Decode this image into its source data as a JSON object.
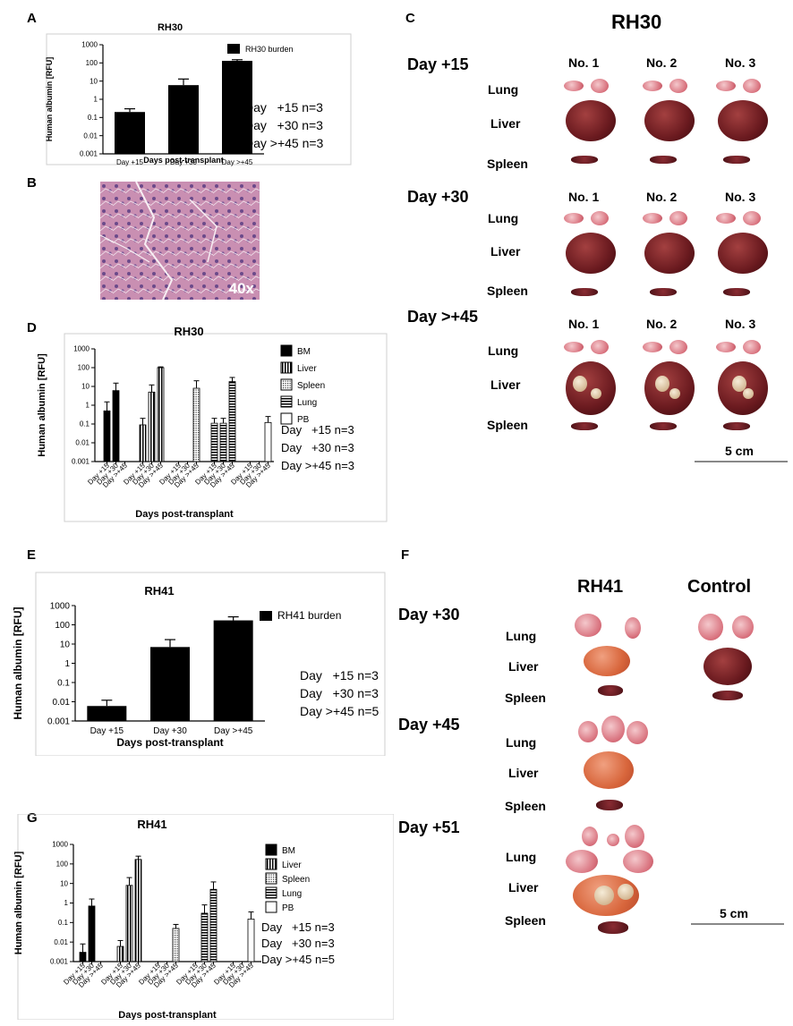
{
  "panels": {
    "A": "A",
    "B": "B",
    "C": "C",
    "D": "D",
    "E": "E",
    "F": "F",
    "G": "G"
  },
  "panel_b": {
    "magnification": "40x"
  },
  "panel_c": {
    "title": "RH30",
    "days": [
      "Day +15",
      "Day +30",
      "Day >+45"
    ],
    "columns": [
      "No. 1",
      "No. 2",
      "No. 3"
    ],
    "organs": [
      "Lung",
      "Liver",
      "Spleen"
    ],
    "scale": "5 cm"
  },
  "panel_f": {
    "col_rh41": "RH41",
    "col_control": "Control",
    "days": [
      "Day +30",
      "Day +45",
      "Day +51"
    ],
    "organs": [
      "Lung",
      "Liver",
      "Spleen"
    ],
    "scale": "5 cm"
  },
  "chart_data": [
    {
      "id": "A",
      "type": "bar",
      "title": "RH30",
      "xlabel": "Days post-transplant",
      "ylabel": "Human albumin [RFU]",
      "yscale": "log",
      "ylim": [
        0.001,
        1000
      ],
      "yticks": [
        "1000",
        "100",
        "10",
        "1",
        "0.1",
        "0.01",
        "0.001"
      ],
      "categories": [
        "Day +15",
        "Day +30",
        "Day >+45"
      ],
      "series": [
        {
          "name": "RH30 burden",
          "values": [
            0.2,
            6,
            130
          ],
          "errors": [
            0.3,
            13,
            150
          ]
        }
      ],
      "legend": "top-right",
      "notes": [
        "Day   +15 n=3",
        "Day   +30 n=3",
        "Day >+45 n=3"
      ]
    },
    {
      "id": "D",
      "type": "bar",
      "title": "RH30",
      "xlabel": "Days post-transplant",
      "ylabel": "Human albumin [RFU]",
      "yscale": "log",
      "ylim": [
        0.001,
        1000
      ],
      "yticks": [
        "1000",
        "100",
        "10",
        "1",
        "0.1",
        "0.01",
        "0.001"
      ],
      "groups": [
        "BM",
        "Liver",
        "Spleen",
        "Lung",
        "PB"
      ],
      "categories": [
        "Day +15",
        "Day +30",
        "Day >+45"
      ],
      "series": [
        {
          "name": "BM",
          "values": [
            0.5,
            6,
            null
          ],
          "errors": [
            1.5,
            15,
            null
          ]
        },
        {
          "name": "Liver",
          "values": [
            0.09,
            5,
            100
          ],
          "errors": [
            0.2,
            12,
            110
          ]
        },
        {
          "name": "Spleen",
          "values": [
            null,
            null,
            8
          ],
          "errors": [
            null,
            null,
            20
          ]
        },
        {
          "name": "Lung",
          "values": [
            0.11,
            0.11,
            18
          ],
          "errors": [
            0.2,
            0.2,
            30
          ]
        },
        {
          "name": "PB",
          "values": [
            null,
            null,
            0.12
          ],
          "errors": [
            null,
            null,
            0.25
          ]
        }
      ],
      "legend": "right",
      "notes": [
        "Day   +15 n=3",
        "Day   +30 n=3",
        "Day >+45 n=3"
      ]
    },
    {
      "id": "E",
      "type": "bar",
      "title": "RH41",
      "xlabel": "Days post-transplant",
      "ylabel": "Human albumin [RFU]",
      "yscale": "log",
      "ylim": [
        0.001,
        1000
      ],
      "yticks": [
        "1000",
        "100",
        "10",
        "1",
        "0.1",
        "0.01",
        "0.001"
      ],
      "categories": [
        "Day +15",
        "Day +30",
        "Day >+45"
      ],
      "series": [
        {
          "name": "RH41 burden",
          "values": [
            0.006,
            7,
            170
          ],
          "errors": [
            0.012,
            17,
            260
          ]
        }
      ],
      "legend": "top-right",
      "notes": [
        "Day   +15 n=3",
        "Day   +30 n=3",
        "Day >+45 n=5"
      ]
    },
    {
      "id": "G",
      "type": "bar",
      "title": "RH41",
      "xlabel": "Days post-transplant",
      "ylabel": "Human albumin [RFU]",
      "yscale": "log",
      "ylim": [
        0.001,
        1000
      ],
      "yticks": [
        "1000",
        "100",
        "10",
        "1",
        "0.1",
        "0.01",
        "0.001"
      ],
      "groups": [
        "BM",
        "Liver",
        "Spleen",
        "Lung",
        "PB"
      ],
      "categories": [
        "Day +15",
        "Day +30",
        "Day >+45"
      ],
      "series": [
        {
          "name": "BM",
          "values": [
            0.003,
            0.7,
            null
          ],
          "errors": [
            0.008,
            1.6,
            null
          ]
        },
        {
          "name": "Liver",
          "values": [
            0.006,
            8,
            170
          ],
          "errors": [
            0.012,
            20,
            250
          ]
        },
        {
          "name": "Spleen",
          "values": [
            null,
            null,
            0.05
          ],
          "errors": [
            null,
            null,
            0.08
          ]
        },
        {
          "name": "Lung",
          "values": [
            null,
            0.3,
            5
          ],
          "errors": [
            null,
            0.8,
            12
          ]
        },
        {
          "name": "PB",
          "values": [
            null,
            null,
            0.15
          ],
          "errors": [
            null,
            null,
            0.35
          ]
        }
      ],
      "legend": "right",
      "notes": [
        "Day   +15 n=3",
        "Day   +30 n=3",
        "Day >+45 n=5"
      ]
    }
  ]
}
